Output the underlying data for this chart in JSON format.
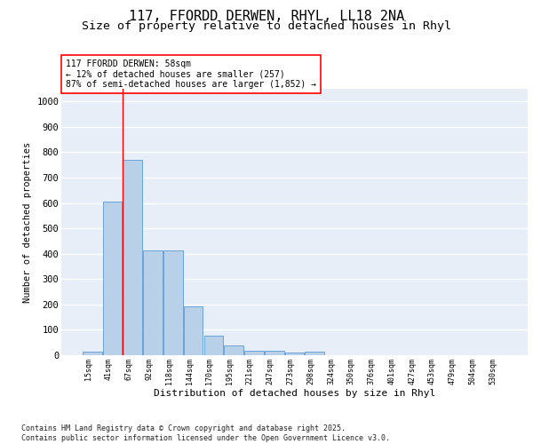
{
  "title1": "117, FFORDD DERWEN, RHYL, LL18 2NA",
  "title2": "Size of property relative to detached houses in Rhyl",
  "xlabel": "Distribution of detached houses by size in Rhyl",
  "ylabel": "Number of detached properties",
  "categories": [
    "15sqm",
    "41sqm",
    "67sqm",
    "92sqm",
    "118sqm",
    "144sqm",
    "170sqm",
    "195sqm",
    "221sqm",
    "247sqm",
    "273sqm",
    "298sqm",
    "324sqm",
    "350sqm",
    "376sqm",
    "401sqm",
    "427sqm",
    "453sqm",
    "479sqm",
    "504sqm",
    "530sqm"
  ],
  "values": [
    15,
    607,
    770,
    412,
    412,
    193,
    77,
    40,
    18,
    18,
    12,
    14,
    0,
    0,
    0,
    0,
    0,
    0,
    0,
    0,
    0
  ],
  "bar_color": "#b8d0e8",
  "bar_edge_color": "#5b9bd5",
  "vline_x": 1.5,
  "vline_color": "red",
  "annotation_text": "117 FFORDD DERWEN: 58sqm\n← 12% of detached houses are smaller (257)\n87% of semi-detached houses are larger (1,852) →",
  "annotation_box_color": "white",
  "annotation_box_edge": "red",
  "ylim": [
    0,
    1050
  ],
  "yticks": [
    0,
    100,
    200,
    300,
    400,
    500,
    600,
    700,
    800,
    900,
    1000
  ],
  "background_color": "#e8eef8",
  "grid_color": "white",
  "footer": "Contains HM Land Registry data © Crown copyright and database right 2025.\nContains public sector information licensed under the Open Government Licence v3.0.",
  "title_fontsize": 11,
  "subtitle_fontsize": 9.5
}
